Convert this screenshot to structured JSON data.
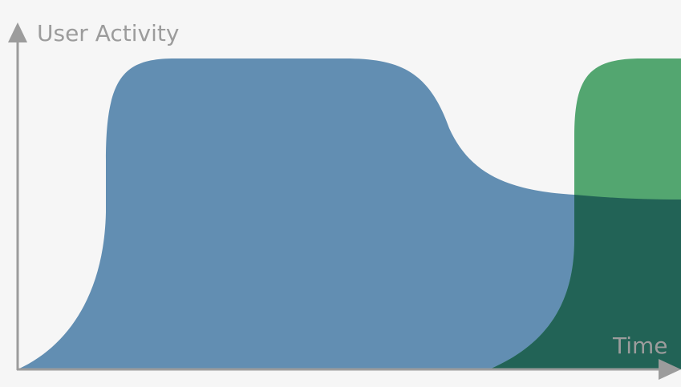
{
  "diagram": {
    "y_axis_label": "User Activity",
    "x_axis_label": "Time"
  },
  "colors": {
    "background": "#f6f6f6",
    "axis": "#9c9c9c",
    "first_curve": "#628eb2",
    "second_curve": "#53a670",
    "overlap": "#226356"
  }
}
